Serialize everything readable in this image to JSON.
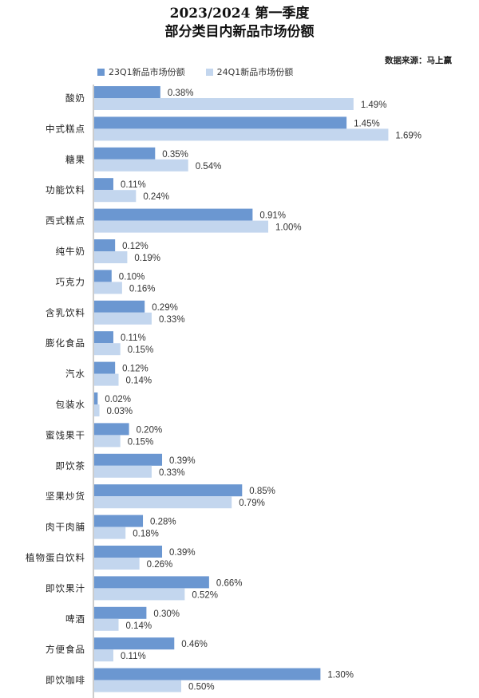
{
  "title": "2023/2024 第一季度",
  "subtitle": "部分类目内新品市场份额",
  "source": "数据来源：马上赢",
  "colors": {
    "series_2023": "#6b97d1",
    "series_2024": "#c3d6ee"
  },
  "chart_data": {
    "type": "bar",
    "orientation": "horizontal",
    "title": "2023/2024 第一季度 部分类目内新品市场份额",
    "categories": [
      "酸奶",
      "中式糕点",
      "糖果",
      "功能饮料",
      "西式糕点",
      "纯牛奶",
      "巧克力",
      "含乳饮料",
      "膨化食品",
      "汽水",
      "包装水",
      "蜜饯果干",
      "即饮茶",
      "坚果炒货",
      "肉干肉脯",
      "植物蛋白饮料",
      "即饮果汁",
      "啤酒",
      "方便食品",
      "即饮咖啡"
    ],
    "series": [
      {
        "name": "23Q1新品市场份额",
        "values": [
          0.38,
          1.45,
          0.35,
          0.11,
          0.91,
          0.12,
          0.1,
          0.29,
          0.11,
          0.12,
          0.02,
          0.2,
          0.39,
          0.85,
          0.28,
          0.39,
          0.66,
          0.3,
          0.46,
          1.3
        ]
      },
      {
        "name": "24Q1新品市场份额",
        "values": [
          1.49,
          1.69,
          0.54,
          0.24,
          1.0,
          0.19,
          0.16,
          0.33,
          0.15,
          0.14,
          0.03,
          0.15,
          0.33,
          0.79,
          0.18,
          0.26,
          0.52,
          0.14,
          0.11,
          0.5
        ]
      }
    ],
    "value_labels": [
      [
        "0.38%",
        "1.45%",
        "0.35%",
        "0.11%",
        "0.91%",
        "0.12%",
        "0.10%",
        "0.29%",
        "0.11%",
        "0.12%",
        "0.02%",
        "0.20%",
        "0.39%",
        "0.85%",
        "0.28%",
        "0.39%",
        "0.66%",
        "0.30%",
        "0.46%",
        "1.30%"
      ],
      [
        "1.49%",
        "1.69%",
        "0.54%",
        "0.24%",
        "1.00%",
        "0.19%",
        "0.16%",
        "0.33%",
        "0.15%",
        "0.14%",
        "0.03%",
        "0.15%",
        "0.33%",
        "0.79%",
        "0.18%",
        "0.26%",
        "0.52%",
        "0.14%",
        "0.11%",
        "0.50%"
      ]
    ],
    "legend_position": "top-left",
    "grid": false
  }
}
